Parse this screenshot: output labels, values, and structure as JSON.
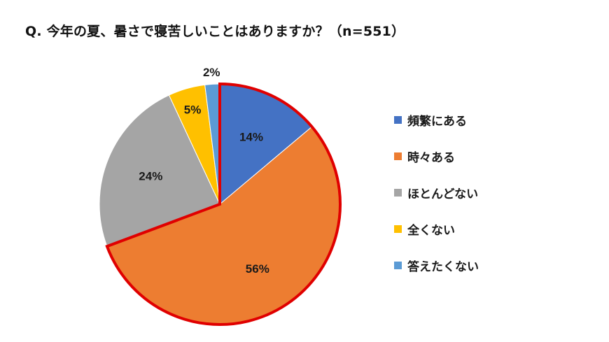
{
  "title": "Q. 今年の夏、暑さで寝苦しいことはありますか？（n=551）",
  "chart_data": {
    "type": "pie",
    "title": "Q. 今年の夏、暑さで寝苦しいことはありますか？（n=551）",
    "n": 551,
    "categories": [
      "頻繁にある",
      "時々ある",
      "ほとんどない",
      "全くない",
      "答えたくない"
    ],
    "values": [
      14,
      56,
      24,
      5,
      2
    ],
    "labels": [
      "14%",
      "56%",
      "24%",
      "5%",
      "2%"
    ],
    "colors": [
      "#4472C4",
      "#ED7D31",
      "#A5A5A5",
      "#FFC000",
      "#5B9BD5"
    ],
    "start_angle": "12 o'clock, clockwise",
    "highlight": {
      "categories": [
        "頻繁にある",
        "時々ある"
      ],
      "outline_color": "#E00000"
    },
    "legend_position": "right"
  },
  "legend": [
    {
      "label": "頻繁にある",
      "color": "#4472C4"
    },
    {
      "label": "時々ある",
      "color": "#ED7D31"
    },
    {
      "label": "ほとんどない",
      "color": "#A5A5A5"
    },
    {
      "label": "全くない",
      "color": "#FFC000"
    },
    {
      "label": "答えたくない",
      "color": "#5B9BD5"
    }
  ]
}
